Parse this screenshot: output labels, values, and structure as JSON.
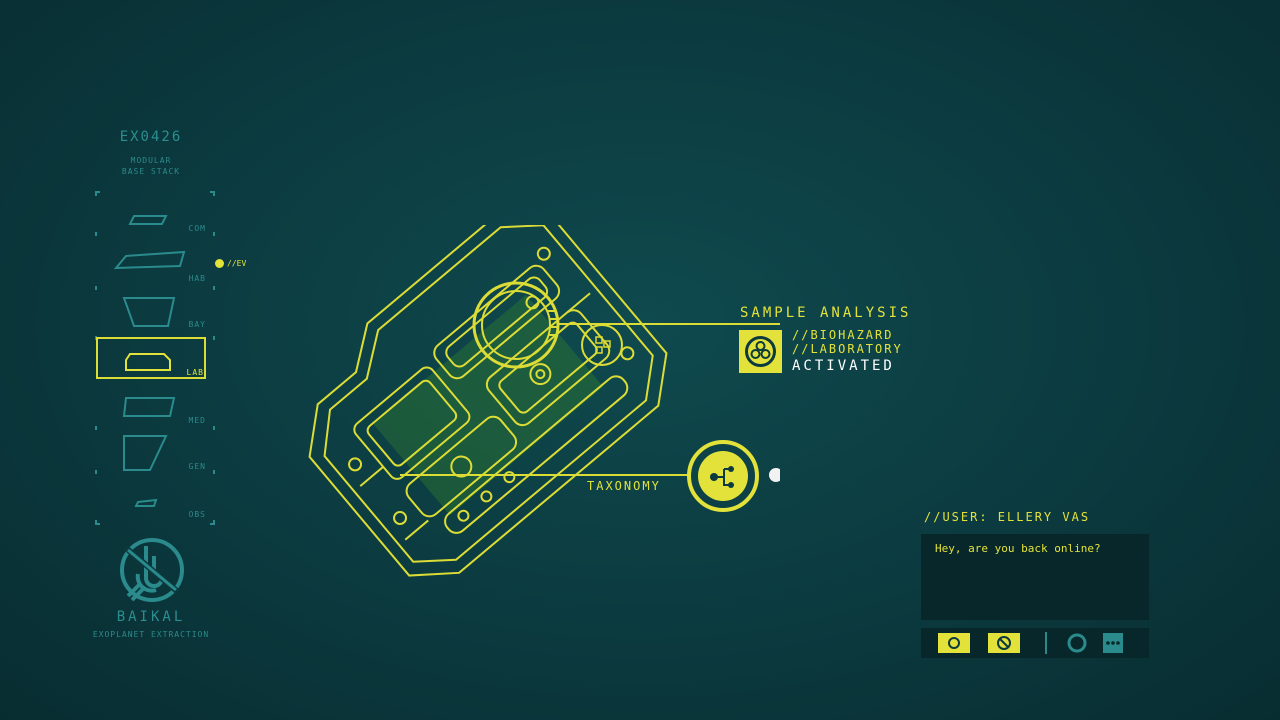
{
  "stack": {
    "id": "EX0426",
    "subtitle_line1": "MODULAR",
    "subtitle_line2": "BASE STACK",
    "modules": [
      {
        "label": "COM"
      },
      {
        "label": "HAB"
      },
      {
        "label": "BAY"
      },
      {
        "label": "LAB",
        "selected": true
      },
      {
        "label": "MED"
      },
      {
        "label": "GEN"
      },
      {
        "label": "OBS"
      }
    ],
    "marker": "//EV"
  },
  "brand": {
    "name": "BAIKAL",
    "subtitle": "EXOPLANET EXTRACTION"
  },
  "analysis": {
    "title": "SAMPLE ANALYSIS",
    "line1": "//BIOHAZARD",
    "line2": "//LABORATORY",
    "status": "ACTIVATED",
    "icon": "biohazard-lab-icon"
  },
  "taxonomy": {
    "label": "TAXONOMY",
    "icon": "taxonomy-tree-icon"
  },
  "chat": {
    "user": "//USER: ELLERY VAS",
    "message": "Hey, are you back online?",
    "toolbar_icons": [
      "circle-button-icon",
      "no-entry-button-icon",
      "ring-button-icon",
      "more-dots-icon"
    ]
  },
  "colors": {
    "accent": "#e3e23a",
    "teal": "#2a8a8c",
    "background": "#0b3a3f",
    "panel": "#08272a"
  }
}
